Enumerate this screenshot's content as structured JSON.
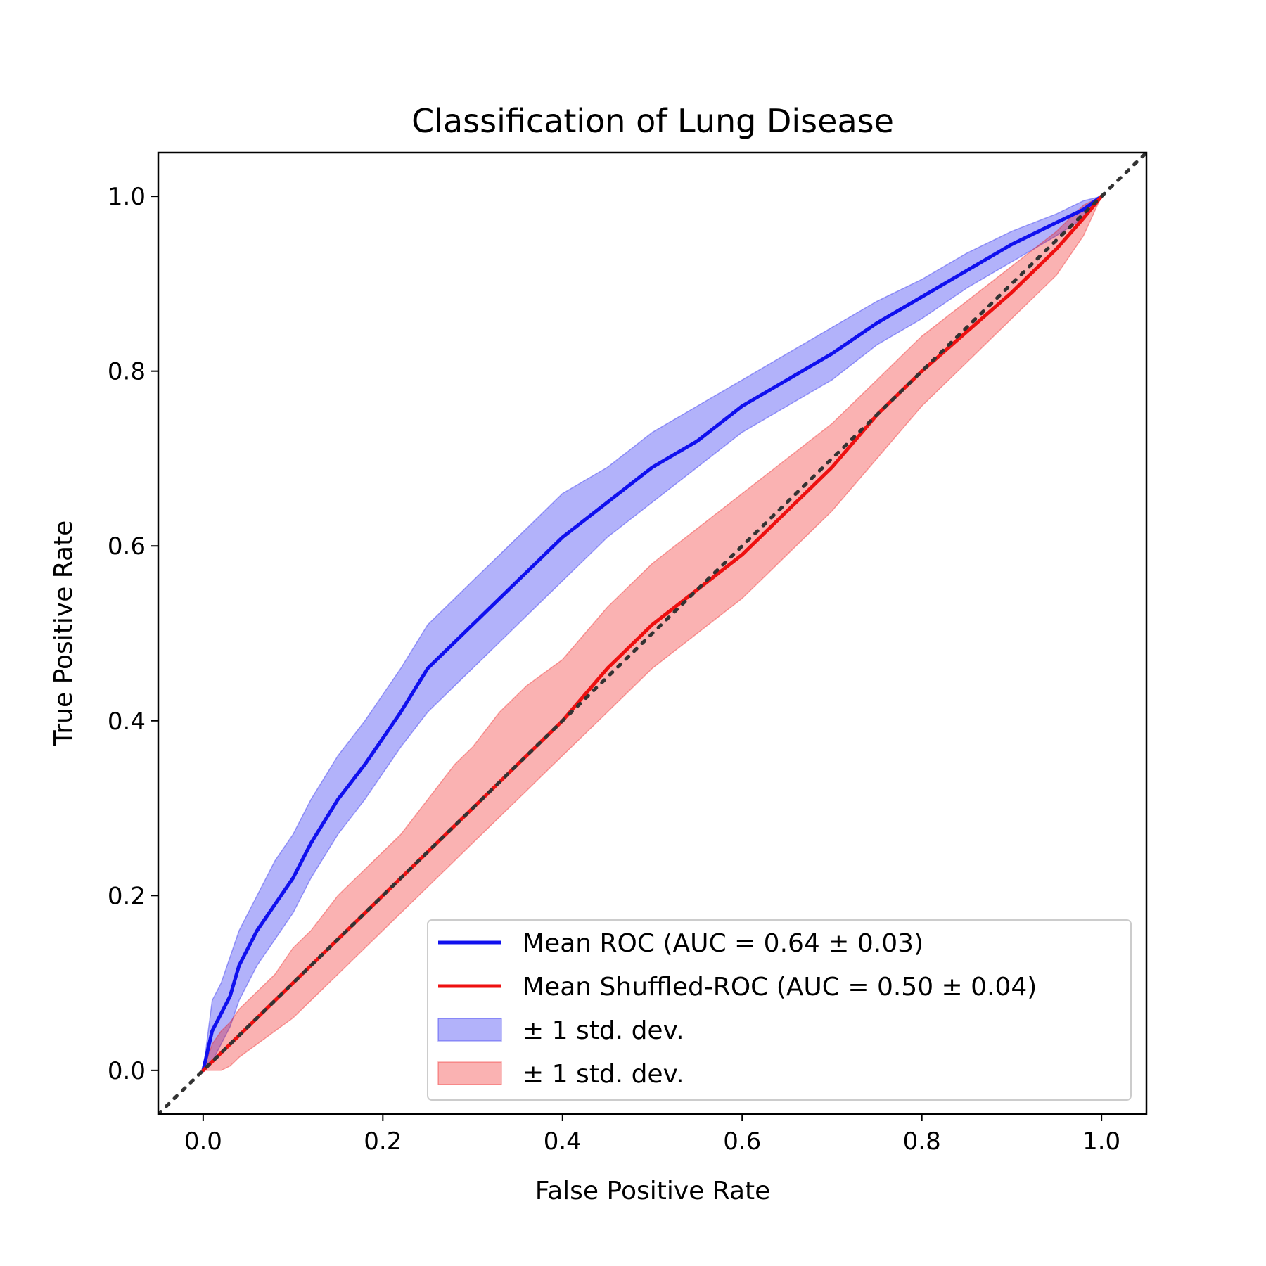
{
  "chart_data": {
    "type": "line",
    "title": "Classification of Lung Disease",
    "xlabel": "False Positive Rate",
    "ylabel": "True Positive Rate",
    "xlim": [
      -0.05,
      1.05
    ],
    "ylim": [
      -0.05,
      1.05
    ],
    "xticks": [
      "0.0",
      "0.2",
      "0.4",
      "0.6",
      "0.8",
      "1.0"
    ],
    "yticks": [
      "0.0",
      "0.2",
      "0.4",
      "0.6",
      "0.8",
      "1.0"
    ],
    "grid": false,
    "legend_position": "lower-right",
    "x": [
      0,
      0.01,
      0.02,
      0.03,
      0.04,
      0.06,
      0.08,
      0.1,
      0.12,
      0.15,
      0.18,
      0.2,
      0.22,
      0.25,
      0.28,
      0.3,
      0.33,
      0.36,
      0.4,
      0.45,
      0.5,
      0.55,
      0.6,
      0.65,
      0.7,
      0.75,
      0.8,
      0.85,
      0.9,
      0.95,
      0.98,
      1.0
    ],
    "series": [
      {
        "name": "Mean ROC (AUC = 0.64 ± 0.03)",
        "color": "#1010ee",
        "y": [
          0,
          0.045,
          0.065,
          0.085,
          0.12,
          0.16,
          0.19,
          0.22,
          0.26,
          0.31,
          0.35,
          0.38,
          0.41,
          0.46,
          0.49,
          0.51,
          0.54,
          0.57,
          0.61,
          0.65,
          0.69,
          0.72,
          0.76,
          0.79,
          0.82,
          0.855,
          0.885,
          0.915,
          0.945,
          0.97,
          0.985,
          1.0
        ],
        "upper": [
          0,
          0.08,
          0.1,
          0.13,
          0.16,
          0.2,
          0.24,
          0.27,
          0.31,
          0.36,
          0.4,
          0.43,
          0.46,
          0.51,
          0.54,
          0.56,
          0.59,
          0.62,
          0.66,
          0.69,
          0.73,
          0.76,
          0.79,
          0.82,
          0.85,
          0.88,
          0.905,
          0.935,
          0.96,
          0.98,
          0.995,
          1.0
        ],
        "lower": [
          0,
          0.01,
          0.03,
          0.05,
          0.08,
          0.12,
          0.15,
          0.18,
          0.22,
          0.27,
          0.31,
          0.34,
          0.37,
          0.41,
          0.44,
          0.46,
          0.49,
          0.52,
          0.56,
          0.61,
          0.65,
          0.69,
          0.73,
          0.76,
          0.79,
          0.83,
          0.86,
          0.895,
          0.925,
          0.955,
          0.975,
          1.0
        ]
      },
      {
        "name": "Mean Shuffled-ROC (AUC = 0.50 ± 0.04)",
        "color": "#ee1010",
        "y": [
          0,
          0.01,
          0.02,
          0.03,
          0.04,
          0.06,
          0.08,
          0.1,
          0.12,
          0.15,
          0.18,
          0.2,
          0.22,
          0.25,
          0.28,
          0.3,
          0.33,
          0.36,
          0.4,
          0.46,
          0.51,
          0.55,
          0.59,
          0.64,
          0.69,
          0.75,
          0.8,
          0.845,
          0.89,
          0.94,
          0.975,
          1.0
        ],
        "upper": [
          0,
          0.03,
          0.045,
          0.055,
          0.07,
          0.09,
          0.11,
          0.14,
          0.16,
          0.2,
          0.23,
          0.25,
          0.27,
          0.31,
          0.35,
          0.37,
          0.41,
          0.44,
          0.47,
          0.53,
          0.58,
          0.62,
          0.66,
          0.7,
          0.74,
          0.79,
          0.84,
          0.88,
          0.92,
          0.96,
          0.99,
          1.0
        ],
        "lower": [
          0,
          0.0,
          0.0,
          0.005,
          0.015,
          0.03,
          0.045,
          0.06,
          0.08,
          0.11,
          0.14,
          0.16,
          0.18,
          0.21,
          0.24,
          0.26,
          0.29,
          0.32,
          0.36,
          0.41,
          0.46,
          0.5,
          0.54,
          0.59,
          0.64,
          0.7,
          0.76,
          0.81,
          0.86,
          0.91,
          0.955,
          1.0
        ]
      }
    ],
    "reference_line": {
      "style": "dotted",
      "color": "#333333",
      "x": [
        -0.05,
        1.05
      ],
      "y": [
        -0.05,
        1.05
      ]
    },
    "legend": [
      {
        "label": "Mean ROC (AUC = 0.64 ± 0.03)",
        "kind": "line",
        "color": "#1010ee"
      },
      {
        "label": "Mean Shuffled-ROC (AUC = 0.50 ± 0.04)",
        "kind": "line",
        "color": "#ee1010"
      },
      {
        "label": "± 1 std. dev.",
        "kind": "patch",
        "color": "#1010ee"
      },
      {
        "label": "± 1 std. dev.",
        "kind": "patch",
        "color": "#ee1010"
      }
    ]
  }
}
